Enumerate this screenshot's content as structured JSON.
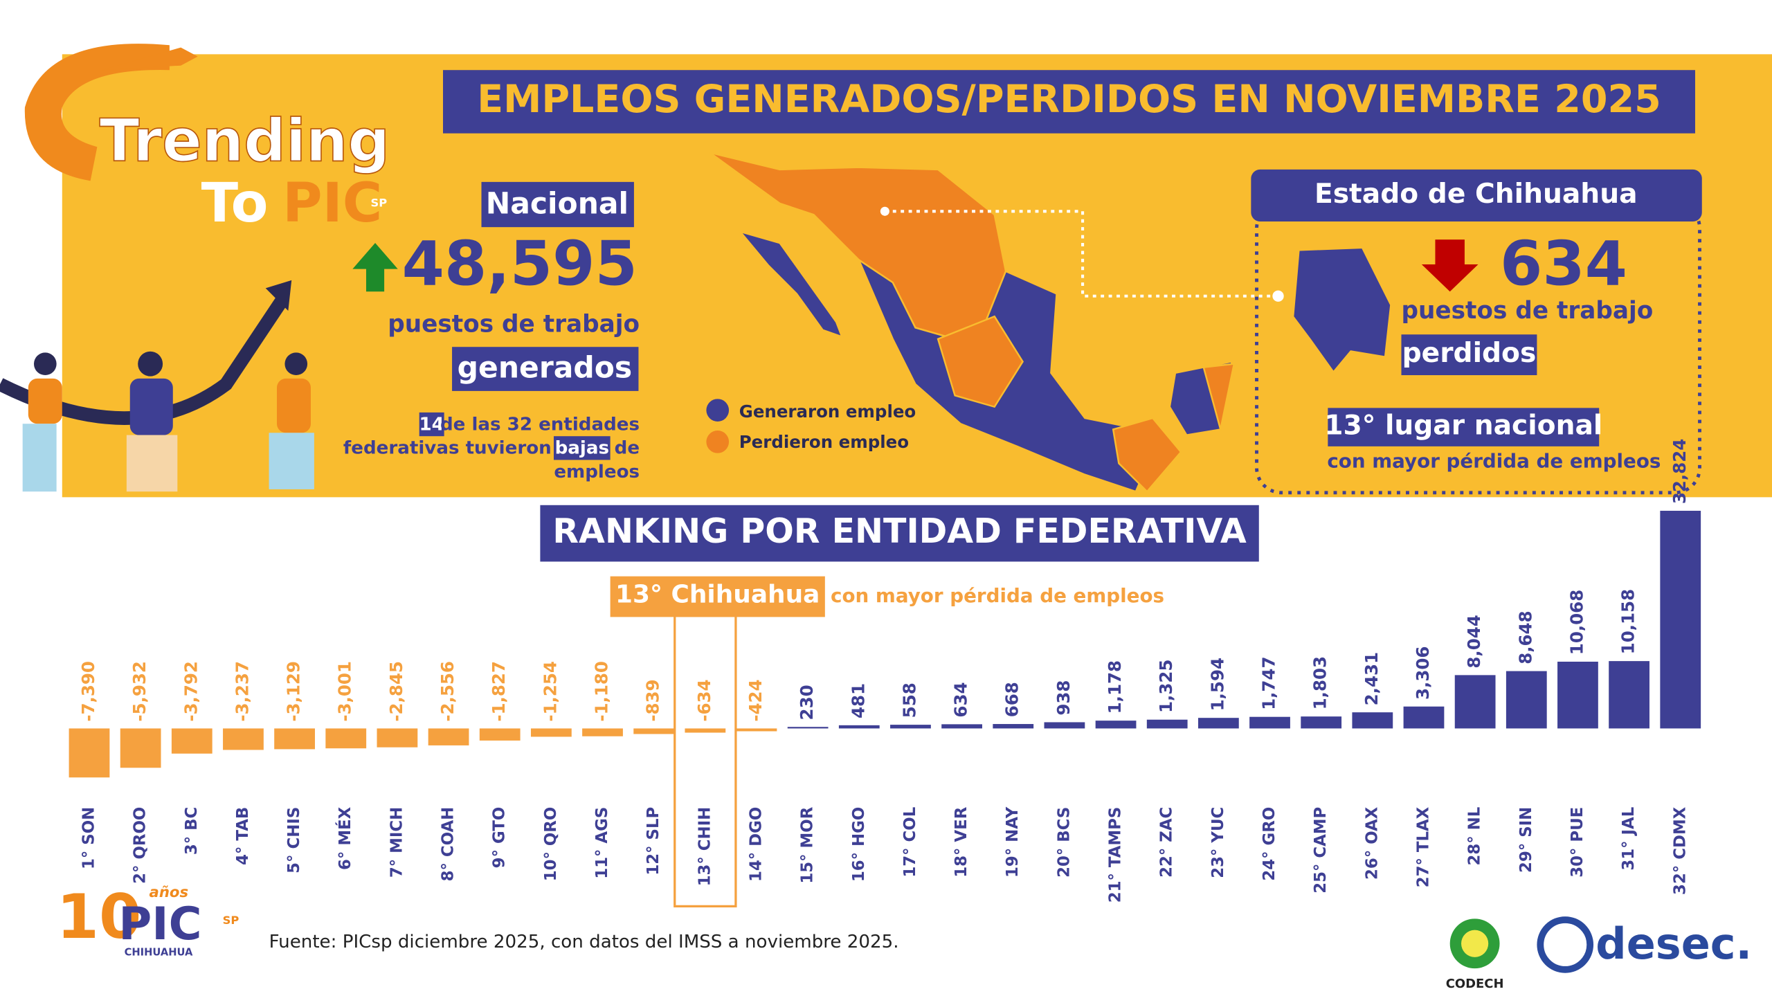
{
  "header": {
    "title": "EMPLEOS GENERADOS/PERDIDOS EN NOVIEMBRE 2025",
    "logo": {
      "line1": "Trending",
      "line2a": "To",
      "line2b": "PIC",
      "sup": "SP"
    }
  },
  "national": {
    "label": "Nacional",
    "value": "48,595",
    "line1": "puestos de trabajo",
    "line2": "generados",
    "note": [
      "14",
      "de las 32 entidades",
      "federativas tuvieron",
      "bajas",
      "de",
      "empleos"
    ]
  },
  "map_legend": [
    "Generaron empleo",
    "Perdieron empleo"
  ],
  "state": {
    "title": "Estado de Chihuahua",
    "value": "634",
    "line1": "puestos de trabajo",
    "line2": "perdidos",
    "rank": "13° lugar nacional",
    "rank_note": "con mayor pérdida de empleos"
  },
  "chart_data": {
    "type": "bar",
    "title": "RANKING POR ENTIDAD FEDERATIVA",
    "highlight_label": "13° Chihuahua",
    "highlight_note": "con mayor pérdida de empleos",
    "categories": [
      "1° SON",
      "2° QROO",
      "3° BC",
      "4° TAB",
      "5° CHIS",
      "6° MÉX",
      "7° MICH",
      "8° COAH",
      "9° GTO",
      "10° QRO",
      "11° AGS",
      "12° SLP",
      "13° CHIH",
      "14° DGO",
      "15° MOR",
      "16° HGO",
      "17° COL",
      "18° VER",
      "19° NAY",
      "20° BCS",
      "21° TAMPS",
      "22° ZAC",
      "23° YUC",
      "24° GRO",
      "25° CAMP",
      "26° OAX",
      "27° TLAX",
      "28° NL",
      "29° SIN",
      "30° PUE",
      "31° JAL",
      "32° CDMX"
    ],
    "values": [
      -7390,
      -5932,
      -3792,
      -3237,
      -3129,
      -3001,
      -2845,
      -2556,
      -1827,
      -1254,
      -1180,
      -839,
      -634,
      -424,
      230,
      481,
      558,
      634,
      668,
      938,
      1178,
      1325,
      1594,
      1747,
      1803,
      2431,
      3306,
      8044,
      8648,
      10068,
      10158,
      32824
    ],
    "value_labels": [
      "-7,390",
      "-5,932",
      "-3,792",
      "-3,237",
      "-3,129",
      "-3,001",
      "-2,845",
      "-2,556",
      "-1,827",
      "-1,254",
      "-1,180",
      "-839",
      "-634",
      "-424",
      "230",
      "481",
      "558",
      "634",
      "668",
      "938",
      "1,178",
      "1,325",
      "1,594",
      "1,747",
      "1,803",
      "2,431",
      "3,306",
      "8,044",
      "8,648",
      "10,068",
      "10,158",
      "32,824"
    ],
    "negative_color": "#f5a13f",
    "positive_color": "#3e3f94"
  },
  "footer": {
    "source": "Fuente: PICsp diciembre 2025, con datos del IMSS a noviembre 2025.",
    "logo_years": "10",
    "logo_anos": "años",
    "logo_pic": "PIC",
    "logo_sp": "SP",
    "logo_city": "CHIHUAHUA",
    "codech": "CODECH",
    "desec": "desec."
  }
}
